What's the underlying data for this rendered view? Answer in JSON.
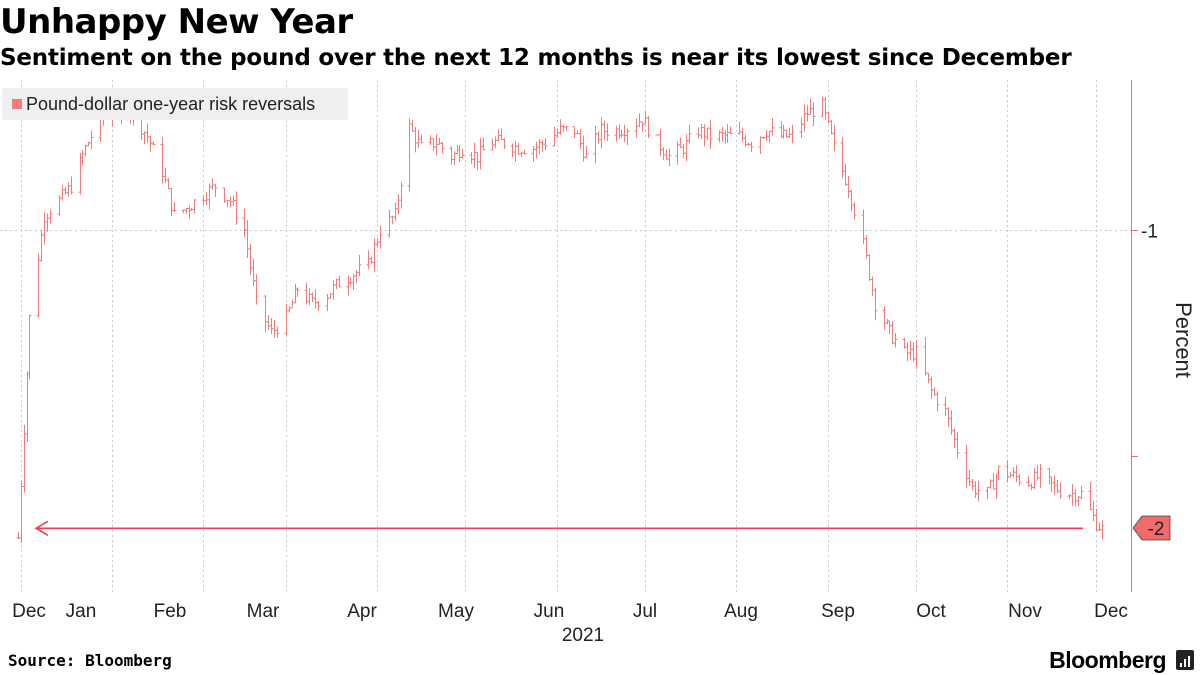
{
  "title": "Unhappy New Year",
  "subtitle": "Sentiment on the pound over the next 12 months is near its lowest since December",
  "source": "Source: Bloomberg",
  "brand": "Bloomberg",
  "brand_icon": "bar-chart-icon",
  "colors": {
    "series": "#f07c7c",
    "accent": "#f26b6b",
    "arrow": "#f23b55",
    "grid": "#c8c8c8",
    "legend_bg": "#efefef"
  },
  "chart_data": {
    "type": "line",
    "subtype": "ohlc-bars",
    "x_axis": {
      "tick_labels": [
        "Dec",
        "Jan",
        "Feb",
        "Mar",
        "Apr",
        "May",
        "Jun",
        "Jul",
        "Aug",
        "Sep",
        "Oct",
        "Nov",
        "Dec"
      ],
      "year_label": "2021"
    },
    "y_axis": {
      "label": "Percent",
      "tick_values": [
        -1
      ],
      "tick_labels": [
        "-1"
      ],
      "range": [
        -2.1,
        -0.5
      ],
      "position": "right"
    },
    "legend": {
      "entries": [
        "Pound-dollar one-year risk reversals"
      ],
      "placement": "top-left"
    },
    "last_value_label": "-2",
    "annotation": "arrow from last value pointing back to December 2020 level",
    "grid": {
      "vertical": true,
      "horizontal": true
    },
    "series": [
      {
        "name": "Pound-dollar one-year risk reversals",
        "x": [
          "2020-11-30",
          "2020-12-04",
          "2020-12-09",
          "2020-12-14",
          "2020-12-18",
          "2020-12-23",
          "2020-12-28",
          "2021-01-04",
          "2021-01-08",
          "2021-01-13",
          "2021-01-18",
          "2021-01-22",
          "2021-01-27",
          "2021-02-01",
          "2021-02-05",
          "2021-02-10",
          "2021-02-15",
          "2021-02-19",
          "2021-02-24",
          "2021-03-01",
          "2021-03-05",
          "2021-03-10",
          "2021-03-15",
          "2021-03-19",
          "2021-03-24",
          "2021-03-29",
          "2021-04-02",
          "2021-04-07",
          "2021-04-12",
          "2021-04-16",
          "2021-04-21",
          "2021-04-26",
          "2021-04-30",
          "2021-05-05",
          "2021-05-10",
          "2021-05-14",
          "2021-05-19",
          "2021-05-24",
          "2021-05-28",
          "2021-06-02",
          "2021-06-07",
          "2021-06-11",
          "2021-06-16",
          "2021-06-21",
          "2021-06-25",
          "2021-06-30",
          "2021-07-05",
          "2021-07-09",
          "2021-07-14",
          "2021-07-19",
          "2021-07-23",
          "2021-07-28",
          "2021-08-02",
          "2021-08-06",
          "2021-08-11",
          "2021-08-16",
          "2021-08-20",
          "2021-08-25",
          "2021-08-30",
          "2021-09-03",
          "2021-09-08",
          "2021-09-13",
          "2021-09-17",
          "2021-09-22",
          "2021-09-27",
          "2021-10-01",
          "2021-10-06",
          "2021-10-11",
          "2021-10-15",
          "2021-10-20",
          "2021-10-25",
          "2021-10-29",
          "2021-11-03",
          "2021-11-08",
          "2021-11-12",
          "2021-11-17",
          "2021-11-22",
          "2021-11-26",
          "2021-12-01",
          "2021-12-03"
        ],
        "values": [
          -2.05,
          -1.3,
          -0.95,
          -0.9,
          -0.85,
          -0.72,
          -0.62,
          -0.58,
          -0.6,
          -0.68,
          -0.8,
          -0.95,
          -0.92,
          -0.88,
          -0.85,
          -0.9,
          -1.0,
          -1.25,
          -1.35,
          -1.3,
          -1.2,
          -1.25,
          -1.22,
          -1.18,
          -1.15,
          -1.12,
          -1.0,
          -0.95,
          -0.65,
          -0.72,
          -0.7,
          -0.75,
          -0.72,
          -0.75,
          -0.7,
          -0.7,
          -0.72,
          -0.72,
          -0.7,
          -0.66,
          -0.66,
          -0.75,
          -0.66,
          -0.66,
          -0.65,
          -0.62,
          -0.7,
          -0.75,
          -0.72,
          -0.66,
          -0.68,
          -0.68,
          -0.68,
          -0.7,
          -0.66,
          -0.68,
          -0.68,
          -0.6,
          -0.58,
          -0.72,
          -0.85,
          -1.05,
          -1.25,
          -1.35,
          -1.42,
          -1.42,
          -1.55,
          -1.62,
          -1.75,
          -1.88,
          -1.9,
          -1.82,
          -1.84,
          -1.86,
          -1.84,
          -1.88,
          -1.9,
          -1.9,
          -2.0,
          -2.02
        ]
      }
    ]
  }
}
